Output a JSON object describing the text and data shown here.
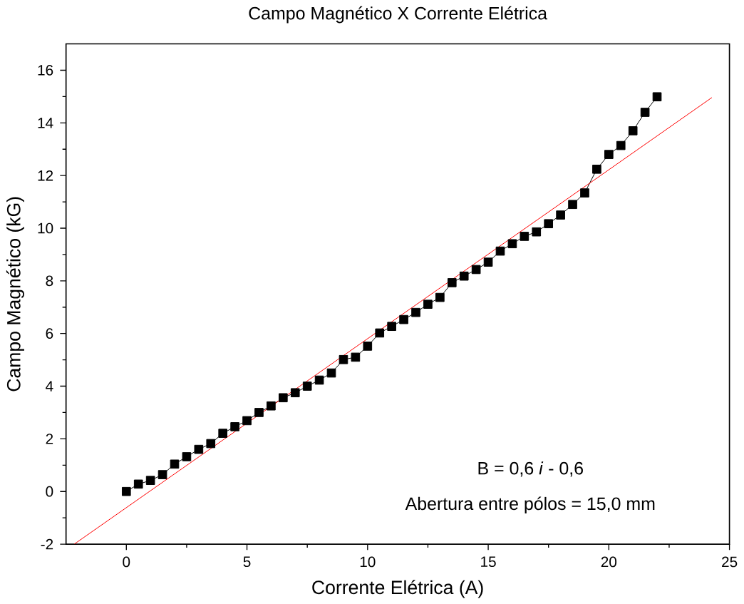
{
  "chart_data": {
    "type": "line",
    "title": "Campo Magnético X Corrente Elétrica",
    "xlabel": "Corrente Elétrica (A)",
    "ylabel": "Campo Magnético (kG)",
    "xlim": [
      -2.5,
      25
    ],
    "ylim": [
      -2,
      17
    ],
    "xticks": [
      0,
      5,
      10,
      15,
      20,
      25
    ],
    "yticks": [
      -2,
      0,
      2,
      4,
      6,
      8,
      10,
      12,
      14,
      16
    ],
    "x": [
      0,
      0.5,
      1,
      1.5,
      2,
      2.5,
      3,
      3.5,
      4,
      4.5,
      5,
      5.5,
      6,
      6.5,
      7,
      7.5,
      8,
      8.5,
      9,
      9.5,
      10,
      10.5,
      11,
      11.5,
      12,
      12.5,
      13,
      13.5,
      14,
      14.5,
      15,
      15.5,
      16,
      16.5,
      17,
      17.5,
      18,
      18.5,
      19,
      19.5,
      20,
      20.5,
      21,
      21.5,
      22
    ],
    "series": [
      {
        "color": "#000000",
        "marker": "square",
        "values": [
          0,
          0.28,
          0.42,
          0.64,
          1.04,
          1.32,
          1.6,
          1.82,
          2.21,
          2.46,
          2.69,
          3.0,
          3.25,
          3.56,
          3.75,
          4.0,
          4.23,
          4.5,
          5.01,
          5.1,
          5.52,
          6.02,
          6.27,
          6.53,
          6.8,
          7.11,
          7.37,
          7.93,
          8.18,
          8.43,
          8.71,
          9.13,
          9.41,
          9.69,
          9.86,
          10.17,
          10.5,
          10.9,
          11.34,
          12.24,
          12.8,
          13.14,
          13.7,
          14.4,
          14.99
        ]
      },
      {
        "type": "line",
        "color": "#ff0000",
        "marker": "none",
        "x": [
          -2.16,
          24.27
        ],
        "values": [
          -2.0,
          14.96
        ]
      }
    ],
    "annotations": [
      "B = 0,6 *i* - 0,6",
      "Abertura entre pólos = 15,0 mm"
    ],
    "grid": false
  }
}
